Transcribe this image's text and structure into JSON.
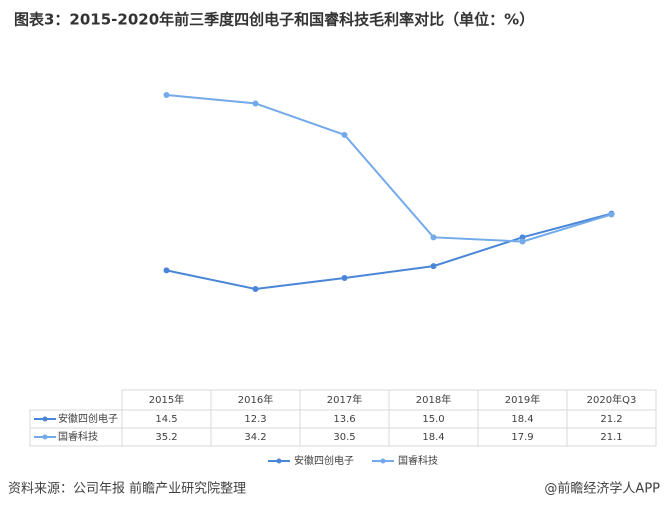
{
  "chart_data": {
    "type": "line",
    "title": "图表3：2015-2020年前三季度四创电子和国睿科技毛利率对比（单位：%）",
    "categories": [
      "2015年",
      "2016年",
      "2017年",
      "2018年",
      "2019年",
      "2020年Q3"
    ],
    "series": [
      {
        "name": "安徽四创电子",
        "color": "#4a86d8",
        "values": [
          14.5,
          12.3,
          13.6,
          15.0,
          18.4,
          21.2
        ],
        "value_labels": [
          "14.5",
          "12.3",
          "13.6",
          "15.0",
          "18.4",
          "21.2"
        ]
      },
      {
        "name": "国睿科技",
        "color": "#72aaea",
        "values": [
          35.2,
          34.2,
          30.5,
          18.4,
          17.9,
          21.1
        ],
        "value_labels": [
          "35.2",
          "34.2",
          "30.5",
          "18.4",
          "17.9",
          "21.1"
        ]
      }
    ],
    "source": "资料来源：公司年报 前瞻产业研究院整理",
    "credit": "@前瞻经济学人APP"
  }
}
